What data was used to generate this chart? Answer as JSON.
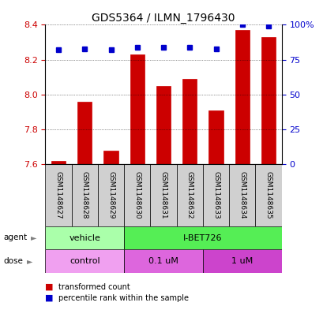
{
  "title": "GDS5364 / ILMN_1796430",
  "samples": [
    "GSM1148627",
    "GSM1148628",
    "GSM1148629",
    "GSM1148630",
    "GSM1148631",
    "GSM1148632",
    "GSM1148633",
    "GSM1148634",
    "GSM1148635"
  ],
  "bar_values": [
    7.62,
    7.96,
    7.68,
    8.23,
    8.05,
    8.09,
    7.91,
    8.37,
    8.33
  ],
  "percentile_values": [
    82,
    83,
    82,
    84,
    84,
    84,
    83,
    100,
    99
  ],
  "ymin": 7.6,
  "ymax": 8.4,
  "yticks": [
    7.6,
    7.8,
    8.0,
    8.2,
    8.4
  ],
  "right_yticks": [
    0,
    25,
    50,
    75,
    100
  ],
  "bar_color": "#cc0000",
  "dot_color": "#0000cc",
  "agent_row": [
    {
      "label": "vehicle",
      "start": 0,
      "end": 3,
      "color": "#aaffaa"
    },
    {
      "label": "I-BET726",
      "start": 3,
      "end": 9,
      "color": "#55ee55"
    }
  ],
  "dose_row": [
    {
      "label": "control",
      "start": 0,
      "end": 3,
      "color": "#f0a0f0"
    },
    {
      "label": "0.1 uM",
      "start": 3,
      "end": 6,
      "color": "#dd66dd"
    },
    {
      "label": "1 uM",
      "start": 6,
      "end": 9,
      "color": "#cc44cc"
    }
  ],
  "background_color": "#ffffff",
  "tick_label_color_left": "#cc0000",
  "tick_label_color_right": "#0000cc",
  "sample_box_color": "#d0d0d0"
}
